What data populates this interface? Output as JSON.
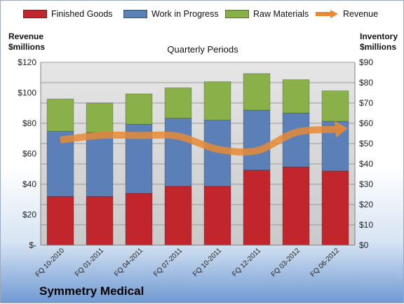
{
  "chart_data": {
    "type": "bar",
    "stacked": true,
    "title": "Quarterly Periods",
    "company": "Symmetry Medical",
    "ylabel_left": [
      "Revenue",
      "$millions"
    ],
    "ylabel_right": [
      "Inventory",
      "$millions"
    ],
    "categories": [
      "FQ 10-2010",
      "FQ 01-2011",
      "FQ 04-2011",
      "FQ 07-2011",
      "FQ 10-2011",
      "FQ 12-2011",
      "FQ 03-2012",
      "FQ 06-2012"
    ],
    "series": [
      {
        "name": "Finished Goods",
        "axis": "right",
        "color": "#c0262b",
        "values": [
          24,
          24,
          25.5,
          29,
          29,
          37,
          38.5,
          36.5
        ]
      },
      {
        "name": "Work in Progress",
        "axis": "right",
        "color": "#5b80b8",
        "values": [
          32,
          31.5,
          34,
          33.5,
          32.5,
          29.5,
          26.5,
          24.5
        ]
      },
      {
        "name": "Raw Materials",
        "axis": "right",
        "color": "#8ab04a",
        "values": [
          16,
          14.5,
          15,
          15,
          19,
          18,
          16.5,
          15
        ]
      },
      {
        "name": "Revenue",
        "type": "line",
        "axis": "left",
        "color": "#e88a34",
        "values": [
          69,
          72,
          72,
          71.5,
          63,
          62,
          74,
          76
        ]
      }
    ],
    "ylim_left": [
      0,
      120
    ],
    "yticks_left": [
      "$-",
      "$20",
      "$40",
      "$60",
      "$80",
      "$100",
      "$120"
    ],
    "ylim_right": [
      0,
      90
    ],
    "yticks_right": [
      "$0",
      "$10",
      "$20",
      "$30",
      "$40",
      "$50",
      "$60",
      "$70",
      "$80",
      "$90"
    ],
    "grid": true,
    "legend_position": "top"
  }
}
